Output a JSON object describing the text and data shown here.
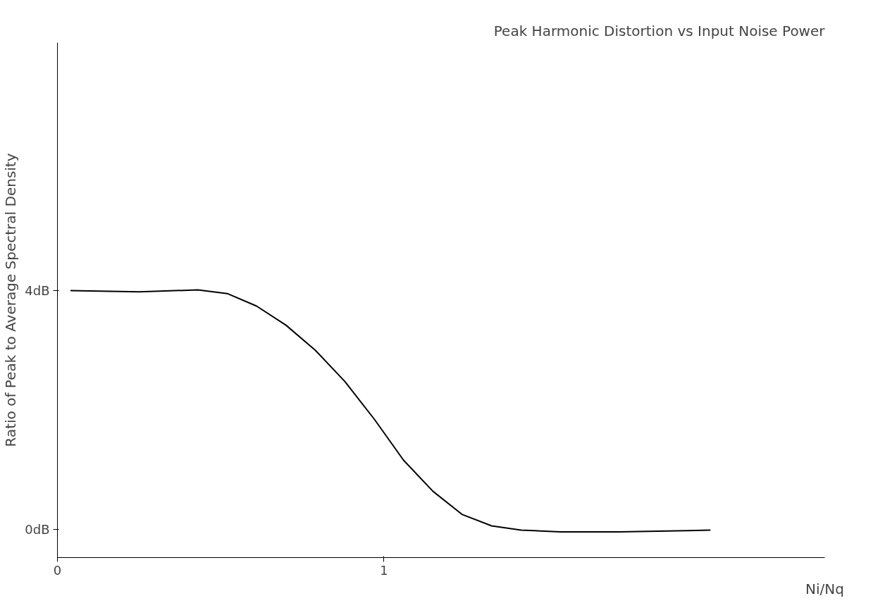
{
  "chart_data": {
    "type": "line",
    "title": "Peak Harmonic Distortion vs Input Noise Power",
    "xlabel": "Ni/Nq",
    "ylabel": "Ratio of Peak to Average Spectral Density",
    "x": [
      0.04,
      0.25,
      0.43,
      0.52,
      0.61,
      0.7,
      0.79,
      0.88,
      0.97,
      1.06,
      1.15,
      1.24,
      1.33,
      1.42,
      1.54,
      1.72,
      1.93,
      2.0
    ],
    "series": [
      {
        "color": "#000000",
        "values": [
          4.0,
          3.98,
          4.01,
          3.95,
          3.74,
          3.42,
          3.0,
          2.48,
          1.85,
          1.16,
          0.64,
          0.25,
          0.06,
          -0.01,
          -0.04,
          -0.04,
          -0.02,
          -0.01
        ]
      }
    ],
    "xlim": [
      0,
      2.35
    ],
    "ylim": [
      -0.47,
      8.15
    ],
    "xticks": [
      0,
      1
    ],
    "yticks": [
      {
        "value": 0,
        "label": "0dB"
      },
      {
        "value": 4,
        "label": "4dB"
      }
    ],
    "grid": false,
    "marker": "none",
    "line_style": "solid"
  }
}
